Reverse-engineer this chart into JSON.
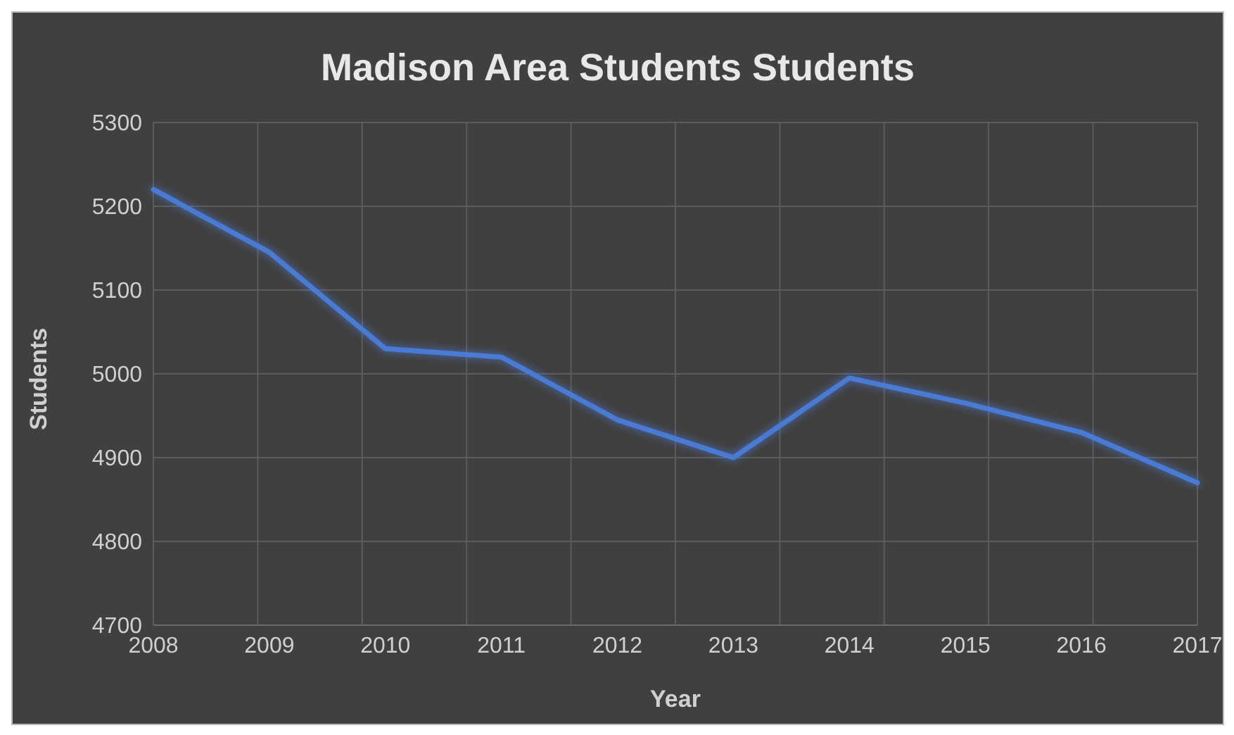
{
  "chart_data": {
    "type": "line",
    "title": "Madison Area Students Students",
    "xlabel": "Year",
    "ylabel": "Students",
    "categories": [
      "2008",
      "2009",
      "2010",
      "2011",
      "2012",
      "2013",
      "2014",
      "2015",
      "2016",
      "2017"
    ],
    "series": [
      {
        "color": "#4a7bd4",
        "values": [
          5220,
          5145,
          5030,
          5020,
          4945,
          4900,
          4995,
          4965,
          4930,
          4870
        ]
      }
    ],
    "ylim": [
      4700,
      5300
    ],
    "yticks": [
      4700,
      4800,
      4900,
      5000,
      5100,
      5200,
      5300
    ],
    "grid": true,
    "legend": false,
    "marker": "none",
    "line_style": "solid"
  }
}
